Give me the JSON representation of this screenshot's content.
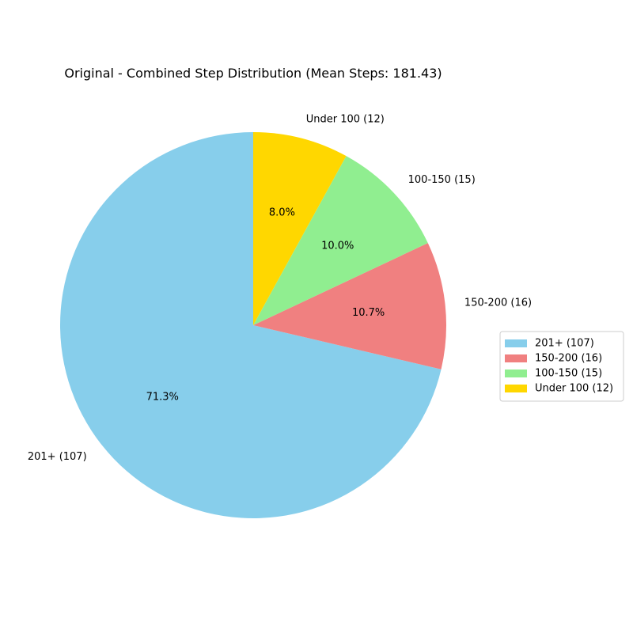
{
  "chart_data": {
    "type": "pie",
    "title": "Original - Combined Step Distribution (Mean Steps: 181.43)",
    "categories": [
      "201+ (107)",
      "150-200 (16)",
      "100-150 (15)",
      "Under 100 (12)"
    ],
    "values": [
      107,
      16,
      15,
      12
    ],
    "percent_labels": [
      "71.3%",
      "10.7%",
      "10.0%",
      "8.0%"
    ],
    "colors": [
      "#87ceeb",
      "#f08080",
      "#90ee90",
      "#ffd700"
    ],
    "start_angle_deg": 90,
    "direction": "counterclockwise",
    "legend": {
      "position": "right",
      "entries": [
        "201+ (107)",
        "150-200 (16)",
        "100-150 (15)",
        "Under 100 (12)"
      ]
    }
  }
}
